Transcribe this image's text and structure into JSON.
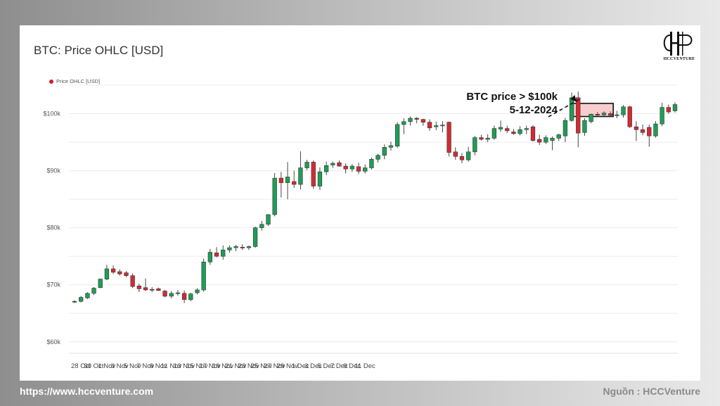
{
  "footer": {
    "url": "https://www.hccventure.com",
    "source": "Nguồn : HCCVenture"
  },
  "logo": {
    "text": "HCCVENTURE"
  },
  "chart_data": {
    "type": "candlestick",
    "title": "BTC: Price OHLC [USD]",
    "legend": {
      "position": "top-left",
      "entries": [
        "Price OHLC [USD]"
      ]
    },
    "colors": {
      "up": "#1f9d55",
      "down": "#d42a33",
      "grid": "#ececec"
    },
    "ylim": [
      58000,
      105000
    ],
    "y_ticks": [
      {
        "value": 60000,
        "label": "$60k"
      },
      {
        "value": 70000,
        "label": "$70k"
      },
      {
        "value": 80000,
        "label": "$80k"
      },
      {
        "value": 90000,
        "label": "$90k"
      },
      {
        "value": 100000,
        "label": "$100k"
      }
    ],
    "x_ticks": [
      "28 Oct",
      "30 Oct",
      "1 Nov",
      "3 Nov",
      "5 Nov",
      "7 Nov",
      "9 Nov",
      "11 Nov",
      "13 Nov",
      "15 Nov",
      "17 Nov",
      "19 Nov",
      "21 Nov",
      "23 Nov",
      "25 Nov",
      "27 Nov",
      "29 Nov",
      "1 Dec",
      "3 Dec",
      "5 Dec",
      "7 Dec",
      "9 Dec",
      "11 Dec"
    ],
    "annotation": {
      "line1": "BTC price > $100k",
      "line2": "5-12-2024",
      "highlight_from_value": 99500,
      "highlight_to_value": 101800
    },
    "candles": [
      {
        "o": 67000,
        "h": 67300,
        "l": 66800,
        "c": 67100
      },
      {
        "o": 67100,
        "h": 68000,
        "l": 66900,
        "c": 67800
      },
      {
        "o": 67700,
        "h": 68700,
        "l": 67500,
        "c": 68500
      },
      {
        "o": 68500,
        "h": 69600,
        "l": 68200,
        "c": 69400
      },
      {
        "o": 69500,
        "h": 71100,
        "l": 69400,
        "c": 71000
      },
      {
        "o": 71000,
        "h": 73500,
        "l": 70800,
        "c": 72800
      },
      {
        "o": 72800,
        "h": 73400,
        "l": 71900,
        "c": 72200
      },
      {
        "o": 72300,
        "h": 72700,
        "l": 71600,
        "c": 71900
      },
      {
        "o": 72100,
        "h": 72400,
        "l": 71300,
        "c": 71600
      },
      {
        "o": 71600,
        "h": 72000,
        "l": 69400,
        "c": 69700
      },
      {
        "o": 69800,
        "h": 70200,
        "l": 68700,
        "c": 69300
      },
      {
        "o": 69500,
        "h": 71100,
        "l": 68900,
        "c": 69100
      },
      {
        "o": 69200,
        "h": 69600,
        "l": 68700,
        "c": 69100
      },
      {
        "o": 69300,
        "h": 69500,
        "l": 68900,
        "c": 69000
      },
      {
        "o": 68900,
        "h": 69100,
        "l": 67800,
        "c": 68000
      },
      {
        "o": 68000,
        "h": 68900,
        "l": 67600,
        "c": 68500
      },
      {
        "o": 68500,
        "h": 69100,
        "l": 68100,
        "c": 68600
      },
      {
        "o": 68500,
        "h": 69000,
        "l": 66800,
        "c": 67400
      },
      {
        "o": 67400,
        "h": 68600,
        "l": 67100,
        "c": 68400
      },
      {
        "o": 68600,
        "h": 69400,
        "l": 68300,
        "c": 69100
      },
      {
        "o": 69100,
        "h": 74600,
        "l": 68800,
        "c": 74000
      },
      {
        "o": 74000,
        "h": 76300,
        "l": 73500,
        "c": 75700
      },
      {
        "o": 75600,
        "h": 76600,
        "l": 74800,
        "c": 75000
      },
      {
        "o": 75000,
        "h": 76900,
        "l": 74400,
        "c": 76100
      },
      {
        "o": 76100,
        "h": 76900,
        "l": 75600,
        "c": 76500
      },
      {
        "o": 76500,
        "h": 77000,
        "l": 75900,
        "c": 76700
      },
      {
        "o": 76600,
        "h": 77100,
        "l": 76100,
        "c": 76500
      },
      {
        "o": 76500,
        "h": 76900,
        "l": 76100,
        "c": 76700
      },
      {
        "o": 76700,
        "h": 80200,
        "l": 76500,
        "c": 80000
      },
      {
        "o": 80000,
        "h": 81200,
        "l": 79500,
        "c": 80600
      },
      {
        "o": 80600,
        "h": 82400,
        "l": 80300,
        "c": 82300
      },
      {
        "o": 82300,
        "h": 89600,
        "l": 82000,
        "c": 88700
      },
      {
        "o": 88700,
        "h": 89800,
        "l": 85300,
        "c": 87900
      },
      {
        "o": 87900,
        "h": 91500,
        "l": 85000,
        "c": 88900
      },
      {
        "o": 88100,
        "h": 90000,
        "l": 87000,
        "c": 87600
      },
      {
        "o": 87600,
        "h": 93400,
        "l": 86700,
        "c": 90500
      },
      {
        "o": 90500,
        "h": 91900,
        "l": 90100,
        "c": 91500
      },
      {
        "o": 91500,
        "h": 91800,
        "l": 86800,
        "c": 87300
      },
      {
        "o": 87300,
        "h": 90600,
        "l": 86600,
        "c": 89800
      },
      {
        "o": 89800,
        "h": 91600,
        "l": 89200,
        "c": 90900
      },
      {
        "o": 91000,
        "h": 91600,
        "l": 90500,
        "c": 91300
      },
      {
        "o": 91400,
        "h": 91800,
        "l": 90700,
        "c": 90800
      },
      {
        "o": 90800,
        "h": 91300,
        "l": 89500,
        "c": 90300
      },
      {
        "o": 90300,
        "h": 91200,
        "l": 89800,
        "c": 90800
      },
      {
        "o": 90700,
        "h": 91400,
        "l": 89400,
        "c": 89900
      },
      {
        "o": 89900,
        "h": 91100,
        "l": 89500,
        "c": 90500
      },
      {
        "o": 90500,
        "h": 92300,
        "l": 90200,
        "c": 92000
      },
      {
        "o": 92000,
        "h": 93000,
        "l": 91400,
        "c": 92700
      },
      {
        "o": 92700,
        "h": 94600,
        "l": 92000,
        "c": 94100
      },
      {
        "o": 94100,
        "h": 95100,
        "l": 93500,
        "c": 94400
      },
      {
        "o": 94300,
        "h": 98500,
        "l": 94000,
        "c": 98100
      },
      {
        "o": 98100,
        "h": 99200,
        "l": 96400,
        "c": 98600
      },
      {
        "o": 98600,
        "h": 99500,
        "l": 97900,
        "c": 99200
      },
      {
        "o": 99200,
        "h": 99400,
        "l": 98300,
        "c": 99000
      },
      {
        "o": 99000,
        "h": 99100,
        "l": 97900,
        "c": 98500
      },
      {
        "o": 98500,
        "h": 99000,
        "l": 97000,
        "c": 97500
      },
      {
        "o": 97700,
        "h": 98600,
        "l": 97100,
        "c": 97900
      },
      {
        "o": 97900,
        "h": 98700,
        "l": 96700,
        "c": 98000
      },
      {
        "o": 98500,
        "h": 98600,
        "l": 92500,
        "c": 93200
      },
      {
        "o": 93300,
        "h": 94100,
        "l": 91900,
        "c": 92500
      },
      {
        "o": 92500,
        "h": 93100,
        "l": 91300,
        "c": 91900
      },
      {
        "o": 91900,
        "h": 94200,
        "l": 91600,
        "c": 93300
      },
      {
        "o": 93300,
        "h": 96100,
        "l": 92700,
        "c": 95800
      },
      {
        "o": 95800,
        "h": 96300,
        "l": 95300,
        "c": 95500
      },
      {
        "o": 95500,
        "h": 96400,
        "l": 95000,
        "c": 95700
      },
      {
        "o": 95700,
        "h": 97900,
        "l": 95400,
        "c": 97400
      },
      {
        "o": 97300,
        "h": 98800,
        "l": 96800,
        "c": 97600
      },
      {
        "o": 97400,
        "h": 97900,
        "l": 96600,
        "c": 97000
      },
      {
        "o": 96800,
        "h": 97300,
        "l": 96300,
        "c": 96500
      },
      {
        "o": 96500,
        "h": 97800,
        "l": 96200,
        "c": 97200
      },
      {
        "o": 97200,
        "h": 97900,
        "l": 96400,
        "c": 97400
      },
      {
        "o": 97700,
        "h": 98000,
        "l": 95100,
        "c": 95300
      },
      {
        "o": 95500,
        "h": 96300,
        "l": 94500,
        "c": 95000
      },
      {
        "o": 95000,
        "h": 96200,
        "l": 94700,
        "c": 95800
      },
      {
        "o": 95300,
        "h": 96000,
        "l": 93600,
        "c": 95700
      },
      {
        "o": 95700,
        "h": 96500,
        "l": 95200,
        "c": 96300
      },
      {
        "o": 96100,
        "h": 99300,
        "l": 95000,
        "c": 98800
      },
      {
        "o": 98800,
        "h": 103700,
        "l": 98600,
        "c": 102800
      },
      {
        "o": 102800,
        "h": 103900,
        "l": 94100,
        "c": 96600
      },
      {
        "o": 96700,
        "h": 99200,
        "l": 96100,
        "c": 98800
      },
      {
        "o": 98600,
        "h": 100000,
        "l": 98300,
        "c": 99900
      },
      {
        "o": 99900,
        "h": 100300,
        "l": 99500,
        "c": 99800
      },
      {
        "o": 99800,
        "h": 100400,
        "l": 99500,
        "c": 100100
      },
      {
        "o": 100000,
        "h": 100400,
        "l": 99400,
        "c": 99700
      },
      {
        "o": 99700,
        "h": 100500,
        "l": 99200,
        "c": 99800
      },
      {
        "o": 99800,
        "h": 101500,
        "l": 99300,
        "c": 101200
      },
      {
        "o": 101200,
        "h": 101400,
        "l": 97500,
        "c": 97700
      },
      {
        "o": 97700,
        "h": 98700,
        "l": 95200,
        "c": 97200
      },
      {
        "o": 97200,
        "h": 98100,
        "l": 96200,
        "c": 96700
      },
      {
        "o": 97600,
        "h": 98100,
        "l": 94200,
        "c": 96100
      },
      {
        "o": 96100,
        "h": 98700,
        "l": 95800,
        "c": 98200
      },
      {
        "o": 98200,
        "h": 101900,
        "l": 97800,
        "c": 101100
      },
      {
        "o": 101100,
        "h": 101600,
        "l": 100000,
        "c": 100300
      },
      {
        "o": 100500,
        "h": 102000,
        "l": 100200,
        "c": 101600
      }
    ]
  }
}
